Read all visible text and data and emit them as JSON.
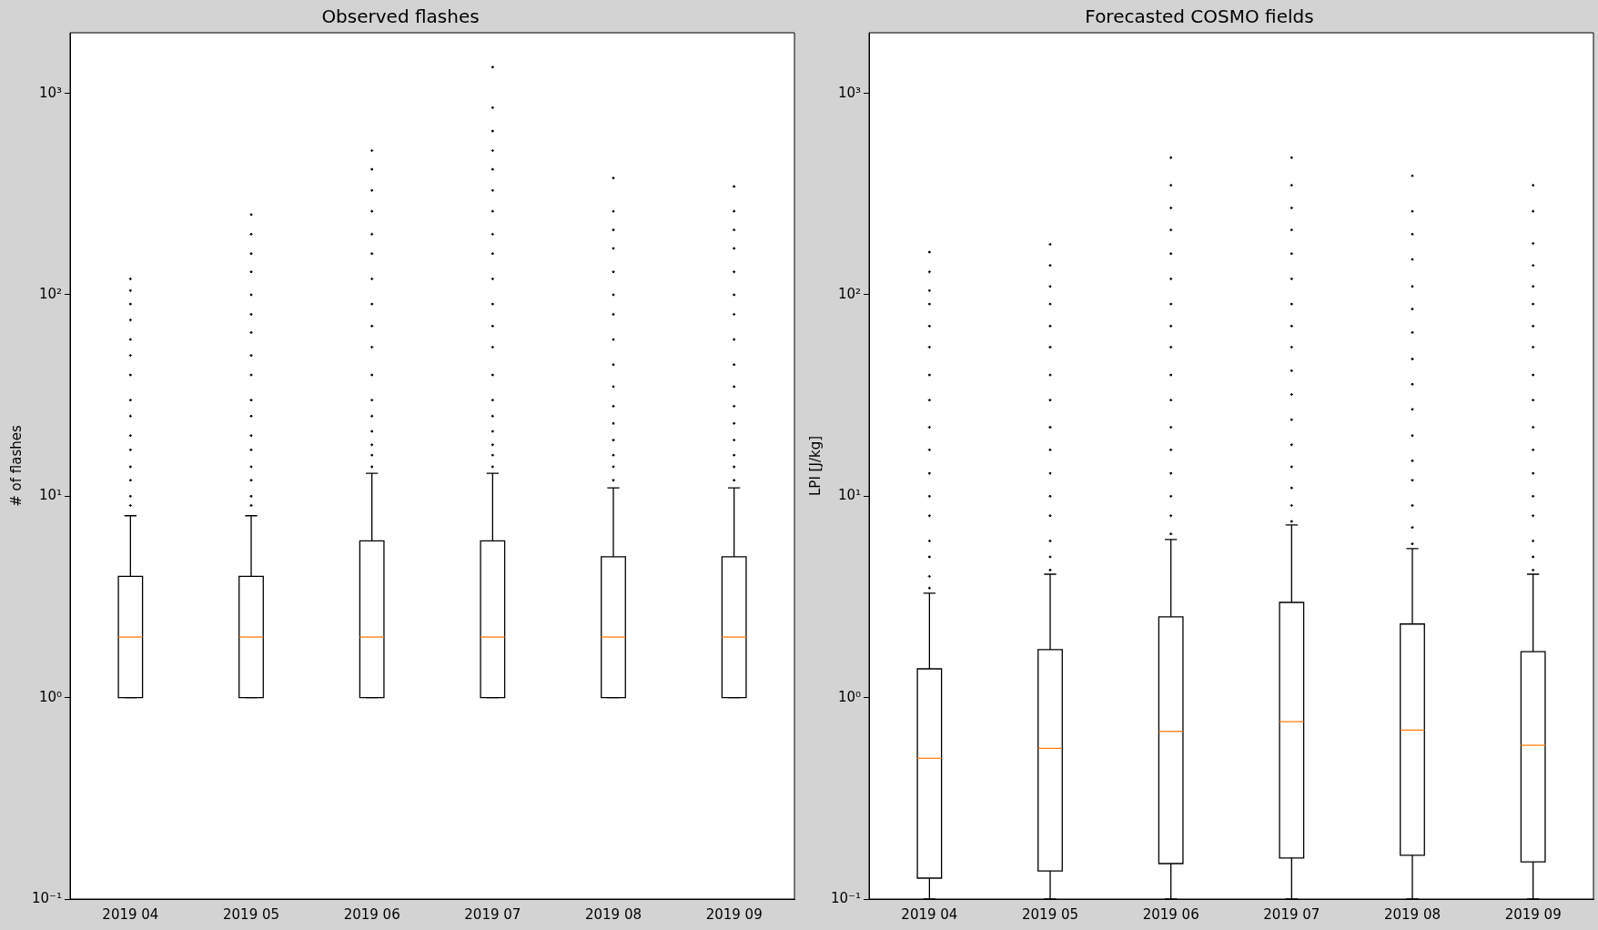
{
  "chart_data": [
    {
      "type": "box",
      "title": "Observed flashes",
      "ylabel": "# of flashes",
      "categories": [
        "2019 04",
        "2019 05",
        "2019 06",
        "2019 07",
        "2019 08",
        "2019 09"
      ],
      "log": "y",
      "grid": false,
      "ylim": [
        0.1,
        2000
      ],
      "yticks": [
        {
          "value": 0.1,
          "label": "10⁻¹"
        },
        {
          "value": 1,
          "label": "10⁰"
        },
        {
          "value": 10,
          "label": "10¹"
        },
        {
          "value": 100,
          "label": "10²"
        },
        {
          "value": 1000,
          "label": "10³"
        }
      ],
      "boxes": [
        {
          "low": 1,
          "q1": 1,
          "median": 2,
          "q3": 4,
          "high": 8,
          "outliers": [
            9,
            10,
            12,
            14,
            17,
            20,
            25,
            30,
            40,
            50,
            60,
            75,
            90,
            105,
            120
          ]
        },
        {
          "low": 1,
          "q1": 1,
          "median": 2,
          "q3": 4,
          "high": 8,
          "outliers": [
            9,
            10,
            12,
            14,
            17,
            20,
            25,
            30,
            40,
            50,
            65,
            80,
            100,
            130,
            160,
            200,
            250
          ]
        },
        {
          "low": 1,
          "q1": 1,
          "median": 2,
          "q3": 6,
          "high": 13,
          "outliers": [
            14,
            16,
            18,
            21,
            25,
            30,
            40,
            55,
            70,
            90,
            120,
            160,
            200,
            260,
            330,
            420,
            520
          ]
        },
        {
          "low": 1,
          "q1": 1,
          "median": 2,
          "q3": 6,
          "high": 13,
          "outliers": [
            14,
            16,
            18,
            21,
            25,
            30,
            40,
            55,
            70,
            90,
            120,
            160,
            200,
            260,
            330,
            420,
            520,
            650,
            850,
            1350
          ]
        },
        {
          "low": 1,
          "q1": 1,
          "median": 2,
          "q3": 5,
          "high": 11,
          "outliers": [
            12,
            14,
            16,
            19,
            23,
            28,
            35,
            45,
            60,
            80,
            100,
            130,
            170,
            210,
            260,
            380
          ]
        },
        {
          "low": 1,
          "q1": 1,
          "median": 2,
          "q3": 5,
          "high": 11,
          "outliers": [
            12,
            14,
            16,
            19,
            23,
            28,
            35,
            45,
            60,
            80,
            100,
            130,
            170,
            210,
            260,
            345
          ]
        }
      ]
    },
    {
      "type": "box",
      "title": "Forecasted COSMO fields",
      "ylabel": "LPI [J/kg]",
      "categories": [
        "2019 04",
        "2019 05",
        "2019 06",
        "2019 07",
        "2019 08",
        "2019 09"
      ],
      "log": "y",
      "grid": false,
      "ylim": [
        0.1,
        2000
      ],
      "yticks": [
        {
          "value": 0.1,
          "label": "10⁻¹"
        },
        {
          "value": 1,
          "label": "10⁰"
        },
        {
          "value": 10,
          "label": "10¹"
        },
        {
          "value": 100,
          "label": "10²"
        },
        {
          "value": 1000,
          "label": "10³"
        }
      ],
      "boxes": [
        {
          "low": 0.1,
          "q1": 0.127,
          "median": 0.5,
          "q3": 1.39,
          "high": 3.3,
          "outliers": [
            3.5,
            4,
            5,
            6,
            8,
            10,
            13,
            17,
            22,
            30,
            40,
            55,
            70,
            90,
            105,
            130,
            163
          ]
        },
        {
          "low": 0.1,
          "q1": 0.138,
          "median": 0.56,
          "q3": 1.73,
          "high": 4.1,
          "outliers": [
            4.3,
            5,
            6,
            8,
            10,
            13,
            17,
            22,
            30,
            40,
            55,
            70,
            90,
            110,
            140,
            178
          ]
        },
        {
          "low": 0.1,
          "q1": 0.15,
          "median": 0.68,
          "q3": 2.52,
          "high": 6.1,
          "outliers": [
            6.5,
            8,
            10,
            13,
            17,
            22,
            30,
            40,
            55,
            70,
            90,
            120,
            160,
            210,
            270,
            350,
            480
          ]
        },
        {
          "low": 0.1,
          "q1": 0.16,
          "median": 0.76,
          "q3": 2.97,
          "high": 7.2,
          "outliers": [
            7.5,
            9,
            11,
            14,
            18,
            24,
            32,
            42,
            55,
            70,
            90,
            120,
            160,
            210,
            270,
            350,
            480
          ]
        },
        {
          "low": 0.1,
          "q1": 0.165,
          "median": 0.69,
          "q3": 2.32,
          "high": 5.5,
          "outliers": [
            5.8,
            7,
            9,
            12,
            15,
            20,
            27,
            36,
            48,
            65,
            85,
            110,
            150,
            200,
            260,
            390
          ]
        },
        {
          "low": 0.1,
          "q1": 0.153,
          "median": 0.58,
          "q3": 1.69,
          "high": 4.1,
          "outliers": [
            4.3,
            5,
            6,
            8,
            10,
            13,
            17,
            22,
            30,
            40,
            55,
            70,
            90,
            110,
            140,
            180,
            260,
            350
          ]
        }
      ]
    }
  ]
}
